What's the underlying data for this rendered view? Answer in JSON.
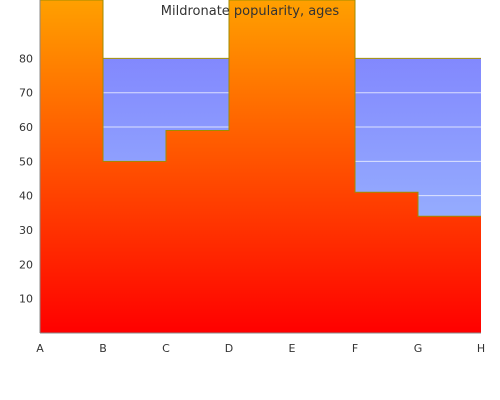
{
  "chart_data": {
    "type": "area",
    "title": "Mildronate popularity, ages",
    "categories": [
      "A",
      "B",
      "C",
      "D",
      "E",
      "F",
      "G",
      "H"
    ],
    "y_ticks": [
      10,
      20,
      30,
      40,
      50,
      60,
      70,
      80
    ],
    "ylim": [
      0,
      97
    ],
    "grid": true,
    "series": [
      {
        "values": [
          97,
          50,
          59,
          97,
          97,
          41,
          34,
          34
        ]
      },
      {
        "values": [
          97,
          80,
          80,
          97,
          97,
          80,
          80,
          80
        ]
      }
    ],
    "step": "post",
    "colors": {
      "upper_band_top": "#7b7bfd",
      "upper_band_bottom": "#a3c6ff",
      "lower_area_top": "#ffa000",
      "lower_area_bottom": "#ff0000",
      "outline": "#a08c00",
      "axis": "#888888",
      "tick_text": "#333333"
    }
  }
}
